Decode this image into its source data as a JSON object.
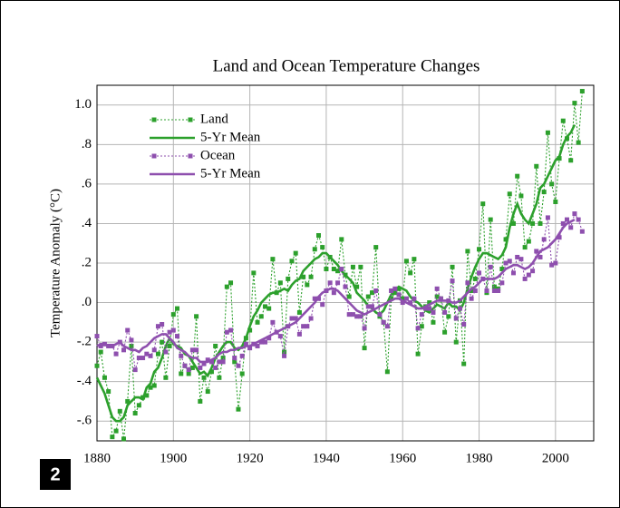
{
  "badge": "2",
  "chart_data": {
    "type": "line",
    "title": "Land and Ocean Temperature Changes",
    "y_label": "Temperature Anomaly (°C)",
    "xlim": [
      1880,
      2010
    ],
    "xticks": [
      1880,
      1900,
      1920,
      1940,
      1960,
      1980,
      2000
    ],
    "ylim": [
      -0.7,
      1.1
    ],
    "yticks": [
      {
        "value": -0.6,
        "label": "-.6"
      },
      {
        "value": -0.4,
        "label": "-.4"
      },
      {
        "value": -0.2,
        "label": "-.2"
      },
      {
        "value": 0,
        "label": ".0"
      },
      {
        "value": 0.2,
        "label": ".2"
      },
      {
        "value": 0.4,
        "label": ".4"
      },
      {
        "value": 0.6,
        "label": ".6"
      },
      {
        "value": 0.8,
        "label": ".8"
      },
      {
        "value": 1.0,
        "label": "1.0"
      }
    ],
    "grid": true,
    "legend": "upper-left",
    "x": [
      1880,
      1881,
      1882,
      1883,
      1884,
      1885,
      1886,
      1887,
      1888,
      1889,
      1890,
      1891,
      1892,
      1893,
      1894,
      1895,
      1896,
      1897,
      1898,
      1899,
      1900,
      1901,
      1902,
      1903,
      1904,
      1905,
      1906,
      1907,
      1908,
      1909,
      1910,
      1911,
      1912,
      1913,
      1914,
      1915,
      1916,
      1917,
      1918,
      1919,
      1920,
      1921,
      1922,
      1923,
      1924,
      1925,
      1926,
      1927,
      1928,
      1929,
      1930,
      1931,
      1932,
      1933,
      1934,
      1935,
      1936,
      1937,
      1938,
      1939,
      1940,
      1941,
      1942,
      1943,
      1944,
      1945,
      1946,
      1947,
      1948,
      1949,
      1950,
      1951,
      1952,
      1953,
      1954,
      1955,
      1956,
      1957,
      1958,
      1959,
      1960,
      1961,
      1962,
      1963,
      1964,
      1965,
      1966,
      1967,
      1968,
      1969,
      1970,
      1971,
      1972,
      1973,
      1974,
      1975,
      1976,
      1977,
      1978,
      1979,
      1980,
      1981,
      1982,
      1983,
      1984,
      1985,
      1986,
      1987,
      1988,
      1989,
      1990,
      1991,
      1992,
      1993,
      1994,
      1995,
      1996,
      1997,
      1998,
      1999,
      2000,
      2001,
      2002,
      2003,
      2004,
      2005,
      2006,
      2007
    ],
    "series": [
      {
        "name": "Land",
        "color": "#2ca02c",
        "style": "dotted",
        "marker": "square",
        "values": [
          -0.32,
          -0.25,
          -0.38,
          -0.45,
          -0.68,
          -0.65,
          -0.55,
          -0.69,
          -0.5,
          -0.22,
          -0.56,
          -0.52,
          -0.48,
          -0.47,
          -0.43,
          -0.42,
          -0.26,
          -0.2,
          -0.38,
          -0.22,
          -0.06,
          -0.03,
          -0.36,
          -0.32,
          -0.36,
          -0.33,
          -0.07,
          -0.5,
          -0.38,
          -0.45,
          -0.35,
          -0.22,
          -0.38,
          -0.28,
          0.08,
          0.1,
          -0.3,
          -0.54,
          -0.36,
          -0.18,
          -0.14,
          0.15,
          -0.1,
          -0.07,
          -0.02,
          -0.03,
          0.22,
          0.05,
          0.1,
          -0.25,
          0.12,
          0.21,
          0.25,
          -0.05,
          0.13,
          0.09,
          0.13,
          0.27,
          0.34,
          0.28,
          0.17,
          0.23,
          0.17,
          0.16,
          0.32,
          0.14,
          0.03,
          0.18,
          0.08,
          0.18,
          -0.23,
          0.03,
          0.05,
          0.28,
          -0.07,
          -0.1,
          -0.35,
          0.02,
          0.05,
          0.07,
          0.02,
          0.21,
          0.15,
          0.22,
          -0.26,
          -0.12,
          -0.02,
          0.0,
          -0.1,
          0.03,
          0.02,
          -0.15,
          -0.07,
          0.18,
          -0.2,
          0.01,
          -0.31,
          0.26,
          0.06,
          0.12,
          0.27,
          0.5,
          0.05,
          0.42,
          0.08,
          0.07,
          0.17,
          0.32,
          0.55,
          0.4,
          0.64,
          0.54,
          0.28,
          0.31,
          0.4,
          0.69,
          0.4,
          0.56,
          0.86,
          0.6,
          0.51,
          0.73,
          0.92,
          0.83,
          0.72,
          1.01,
          0.81,
          1.07
        ]
      },
      {
        "name": "5-Yr Mean",
        "color": "#2ca02c",
        "style": "solid",
        "values": [
          -0.38,
          -0.42,
          -0.46,
          -0.52,
          -0.58,
          -0.6,
          -0.6,
          -0.58,
          -0.52,
          -0.5,
          -0.48,
          -0.48,
          -0.49,
          -0.43,
          -0.41,
          -0.35,
          -0.33,
          -0.28,
          -0.22,
          -0.18,
          -0.21,
          -0.22,
          -0.23,
          -0.26,
          -0.27,
          -0.3,
          -0.33,
          -0.36,
          -0.35,
          -0.37,
          -0.33,
          -0.28,
          -0.25,
          -0.22,
          -0.2,
          -0.2,
          -0.23,
          -0.24,
          -0.22,
          -0.18,
          -0.12,
          -0.07,
          -0.04,
          0.0,
          0.02,
          0.04,
          0.05,
          0.05,
          0.06,
          0.07,
          0.06,
          0.09,
          0.11,
          0.12,
          0.16,
          0.18,
          0.2,
          0.22,
          0.23,
          0.25,
          0.25,
          0.23,
          0.21,
          0.19,
          0.16,
          0.14,
          0.12,
          0.1,
          0.05,
          0.03,
          0.01,
          -0.02,
          -0.03,
          -0.05,
          -0.06,
          -0.04,
          0.0,
          0.04,
          0.06,
          0.08,
          0.07,
          0.06,
          0.03,
          0.01,
          0.0,
          -0.02,
          -0.04,
          -0.05,
          -0.03,
          -0.01,
          -0.02,
          -0.03,
          0.0,
          -0.02,
          -0.02,
          -0.04,
          0.0,
          0.07,
          0.13,
          0.18,
          0.22,
          0.25,
          0.25,
          0.24,
          0.23,
          0.22,
          0.24,
          0.28,
          0.38,
          0.45,
          0.5,
          0.45,
          0.42,
          0.4,
          0.45,
          0.5,
          0.58,
          0.6,
          0.64,
          0.68,
          0.72,
          0.74,
          0.8,
          0.84,
          0.86,
          0.9,
          null,
          null
        ]
      },
      {
        "name": "Ocean",
        "color": "#8e4fae",
        "style": "dotted",
        "marker": "square",
        "values": [
          -0.17,
          -0.22,
          -0.21,
          -0.22,
          -0.22,
          -0.26,
          -0.2,
          -0.24,
          -0.14,
          -0.19,
          -0.34,
          -0.28,
          -0.28,
          -0.26,
          -0.27,
          -0.24,
          -0.12,
          -0.11,
          -0.25,
          -0.15,
          -0.14,
          -0.17,
          -0.27,
          -0.32,
          -0.34,
          -0.24,
          -0.24,
          -0.33,
          -0.31,
          -0.29,
          -0.3,
          -0.33,
          -0.3,
          -0.3,
          -0.15,
          -0.14,
          -0.28,
          -0.32,
          -0.27,
          -0.21,
          -0.23,
          -0.21,
          -0.22,
          -0.2,
          -0.2,
          -0.18,
          -0.1,
          -0.15,
          -0.17,
          -0.27,
          -0.12,
          -0.08,
          -0.08,
          -0.16,
          -0.12,
          -0.12,
          -0.08,
          0.02,
          0.02,
          -0.01,
          0.06,
          0.1,
          0.05,
          0.1,
          0.17,
          0.08,
          -0.06,
          -0.06,
          -0.07,
          -0.07,
          -0.13,
          -0.02,
          -0.02,
          0.06,
          -0.06,
          -0.1,
          -0.12,
          0.06,
          0.07,
          0.04,
          0.0,
          0.02,
          0.0,
          0.02,
          -0.13,
          -0.06,
          -0.03,
          -0.03,
          -0.05,
          0.07,
          0.02,
          -0.05,
          0.01,
          0.11,
          -0.08,
          -0.03,
          -0.11,
          0.1,
          0.02,
          0.06,
          0.15,
          0.12,
          0.06,
          0.18,
          0.06,
          0.06,
          0.1,
          0.2,
          0.21,
          0.15,
          0.23,
          0.22,
          0.12,
          0.14,
          0.16,
          0.26,
          0.23,
          0.32,
          0.43,
          0.19,
          0.2,
          0.33,
          0.4,
          0.42,
          0.38,
          0.45,
          0.42,
          0.36
        ]
      },
      {
        "name": "5-Yr Mean",
        "color": "#8e4fae",
        "style": "solid",
        "values": [
          -0.22,
          -0.21,
          -0.21,
          -0.22,
          -0.22,
          -0.21,
          -0.2,
          -0.22,
          -0.23,
          -0.24,
          -0.24,
          -0.25,
          -0.23,
          -0.22,
          -0.2,
          -0.18,
          -0.17,
          -0.16,
          -0.16,
          -0.18,
          -0.2,
          -0.23,
          -0.24,
          -0.25,
          -0.27,
          -0.28,
          -0.28,
          -0.3,
          -0.3,
          -0.3,
          -0.29,
          -0.28,
          -0.26,
          -0.25,
          -0.25,
          -0.24,
          -0.24,
          -0.23,
          -0.23,
          -0.22,
          -0.22,
          -0.21,
          -0.2,
          -0.19,
          -0.18,
          -0.17,
          -0.16,
          -0.15,
          -0.14,
          -0.13,
          -0.12,
          -0.11,
          -0.1,
          -0.08,
          -0.06,
          -0.04,
          -0.02,
          0.0,
          0.03,
          0.05,
          0.06,
          0.07,
          0.07,
          0.06,
          0.04,
          0.02,
          0.0,
          -0.02,
          -0.04,
          -0.05,
          -0.06,
          -0.05,
          -0.04,
          -0.03,
          -0.02,
          -0.01,
          0.0,
          0.01,
          0.02,
          0.02,
          0.01,
          0.0,
          -0.01,
          -0.02,
          -0.03,
          -0.03,
          -0.02,
          -0.01,
          0.0,
          0.01,
          0.01,
          0.01,
          0.01,
          0.0,
          0.0,
          0.01,
          0.03,
          0.05,
          0.07,
          0.08,
          0.1,
          0.12,
          0.12,
          0.12,
          0.12,
          0.13,
          0.15,
          0.17,
          0.18,
          0.19,
          0.19,
          0.18,
          0.17,
          0.18,
          0.2,
          0.23,
          0.26,
          0.27,
          0.28,
          0.3,
          0.32,
          0.35,
          0.38,
          0.4,
          0.41,
          0.42,
          null,
          null
        ]
      }
    ]
  }
}
